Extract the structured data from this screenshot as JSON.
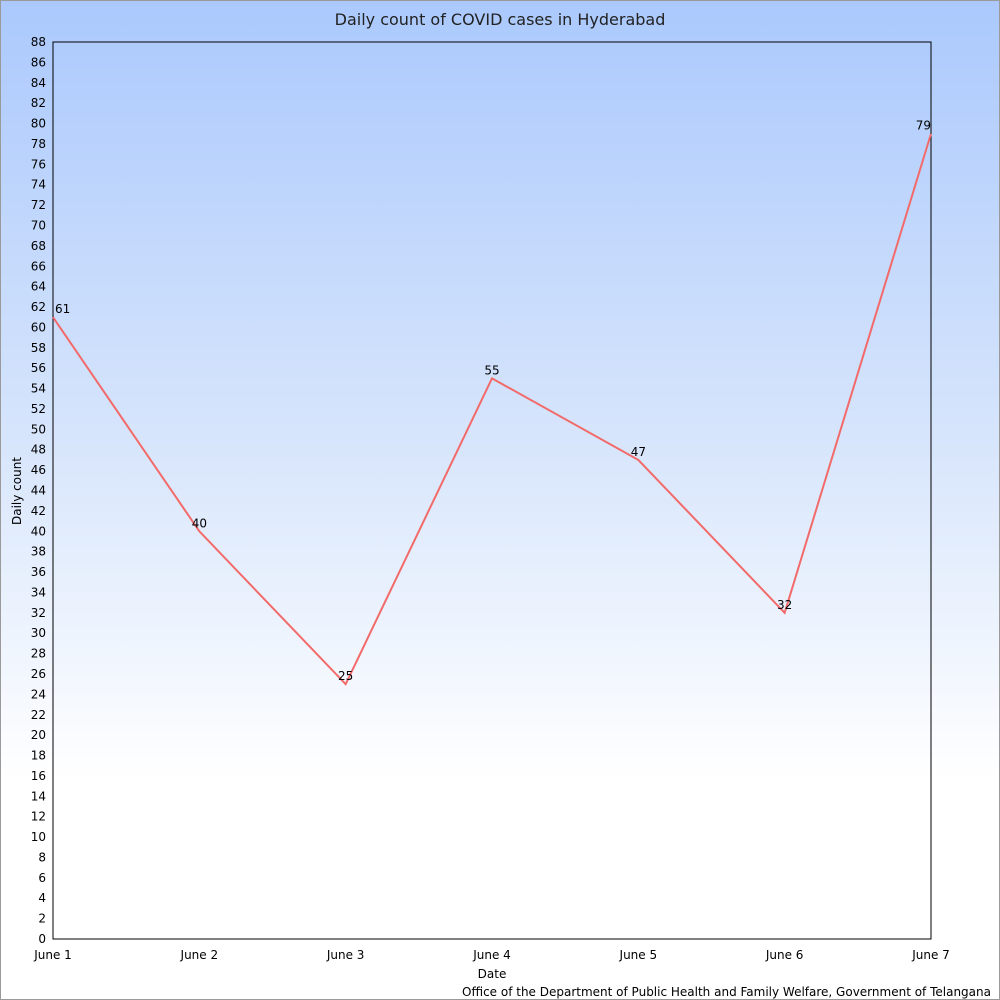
{
  "chart_data": {
    "type": "line",
    "title": "Daily count of COVID cases in Hyderabad",
    "xlabel": "Date",
    "ylabel": "Daily count",
    "categories": [
      "June 1",
      "June 2",
      "June 3",
      "June 4",
      "June 5",
      "June 6",
      "June 7"
    ],
    "series": [
      {
        "values": [
          61,
          40,
          25,
          55,
          47,
          32,
          79
        ],
        "color": "#f26a6a"
      }
    ],
    "ylim": [
      0,
      88
    ],
    "ytick_step": 2,
    "grid": false,
    "data_labels": true
  },
  "source_note": "Office of the Department of Public Health and Family Welfare, Government of Telangana"
}
